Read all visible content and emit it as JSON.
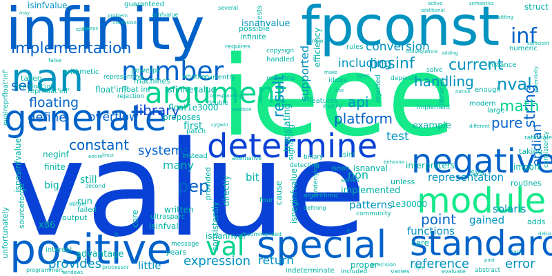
{
  "words": [
    {
      "text": "value"
    },
    {
      "text": "ieee"
    },
    {
      "text": "infinity"
    },
    {
      "text": "fpconst"
    },
    {
      "text": "positive"
    },
    {
      "text": "special"
    },
    {
      "text": "standard"
    },
    {
      "text": "generate"
    },
    {
      "text": "module"
    },
    {
      "text": "determine"
    },
    {
      "text": "argument"
    },
    {
      "text": "negative"
    },
    {
      "text": "nan"
    },
    {
      "text": "number"
    },
    {
      "text": "val"
    },
    {
      "text": "implementation"
    },
    {
      "text": "inf"
    },
    {
      "text": "current"
    },
    {
      "text": "posinf"
    },
    {
      "text": "supported"
    },
    {
      "text": "handling"
    },
    {
      "text": "nval"
    },
    {
      "text": "including"
    },
    {
      "text": "conversion"
    },
    {
      "text": "set"
    },
    {
      "text": "result"
    },
    {
      "text": "string"
    },
    {
      "text": "endian"
    },
    {
      "text": "floating"
    },
    {
      "text": "library"
    },
    {
      "text": "api"
    },
    {
      "text": "math"
    },
    {
      "text": "define"
    },
    {
      "text": "overflow"
    },
    {
      "text": "platform"
    },
    {
      "text": "pure"
    },
    {
      "text": "constant"
    },
    {
      "text": "systems"
    },
    {
      "text": "test"
    },
    {
      "text": "pep"
    },
    {
      "text": "point"
    },
    {
      "text": "gained"
    },
    {
      "text": "representation"
    },
    {
      "text": "patterns"
    },
    {
      "text": "functions"
    },
    {
      "text": "solaris"
    },
    {
      "text": "provides"
    },
    {
      "text": "expression"
    },
    {
      "text": "return"
    },
    {
      "text": "reference"
    },
    {
      "text": "error"
    },
    {
      "text": "little"
    },
    {
      "text": "isnanvalue"
    },
    {
      "text": "isinfvalue"
    },
    {
      "text": "float'inf'"
    },
    {
      "text": "float inf"
    },
    {
      "text": "isfinitevalue"
    },
    {
      "text": "powerpc"
    },
    {
      "text": "float1e3000"
    },
    {
      "text": "reprfloat'inf'"
    },
    {
      "text": "isposinfvalue"
    },
    {
      "text": "isneginfvalue"
    },
    {
      "text": "isnannval"
    },
    {
      "text": "isinfval"
    },
    {
      "text": "neginf"
    },
    {
      "text": "finite"
    },
    {
      "text": "big"
    },
    {
      "text": "x86"
    },
    {
      "text": "run"
    },
    {
      "text": "sourceforge"
    },
    {
      "text": "first"
    },
    {
      "text": "proposes"
    },
    {
      "text": "written"
    },
    {
      "text": "many"
    },
    {
      "text": "still"
    },
    {
      "text": "interpreters"
    },
    {
      "text": "implemented"
    },
    {
      "text": "example"
    },
    {
      "text": "non"
    },
    {
      "text": "bit"
    },
    {
      "text": "directly"
    },
    {
      "text": "provided"
    },
    {
      "text": "cause"
    },
    {
      "text": "isnanval"
    },
    {
      "text": "isnan"
    },
    {
      "text": "isinf"
    },
    {
      "text": "every"
    },
    {
      "text": "rules"
    },
    {
      "text": "guaranteed"
    },
    {
      "text": "arithmetic"
    },
    {
      "text": "machines"
    },
    {
      "text": "taken"
    },
    {
      "text": "core"
    },
    {
      "text": "ultrasparc"
    },
    {
      "text": "advantage"
    },
    {
      "text": "years"
    },
    {
      "text": "1e30000"
    },
    {
      "text": "care"
    },
    {
      "text": "adds"
    },
    {
      "text": "proper"
    },
    {
      "text": "translating"
    },
    {
      "text": "signalling"
    },
    {
      "text": "consistently"
    },
    {
      "text": "tests"
    },
    {
      "text": "possible"
    },
    {
      "text": "infinite"
    },
    {
      "text": "efficiency"
    },
    {
      "text": "struct"
    },
    {
      "text": "handled"
    },
    {
      "text": "copysign"
    },
    {
      "text": "roundtrip"
    },
    {
      "text": "requires"
    },
    {
      "text": "sys"
    },
    {
      "text": "import"
    },
    {
      "text": "taking"
    },
    {
      "text": "routines"
    },
    {
      "text": "instance"
    },
    {
      "text": "numeric"
    },
    {
      "text": "enough"
    },
    {
      "text": "large"
    },
    {
      "text": "modern"
    },
    {
      "text": "libraries"
    },
    {
      "text": "features"
    },
    {
      "text": "ideas"
    },
    {
      "text": "rejected"
    },
    {
      "text": "depends"
    },
    {
      "text": "implement"
    },
    {
      "text": "solve"
    },
    {
      "text": "rationale"
    },
    {
      "text": "consistency"
    },
    {
      "text": "unless"
    },
    {
      "text": "series"
    },
    {
      "text": "four"
    },
    {
      "text": "algorithmic"
    },
    {
      "text": "community"
    },
    {
      "text": "underlying"
    },
    {
      "text": "detecting"
    },
    {
      "text": "binary"
    },
    {
      "text": "alternative"
    },
    {
      "text": "defining"
    },
    {
      "text": "recommended"
    },
    {
      "text": "indeterminate"
    },
    {
      "text": "included"
    },
    {
      "text": "precision"
    },
    {
      "text": "abstract"
    },
    {
      "text": "varies"
    },
    {
      "text": "evaluate"
    },
    {
      "text": "processor"
    },
    {
      "text": "output"
    },
    {
      "text": "failed"
    },
    {
      "text": "second"
    },
    {
      "text": "obtain"
    },
    {
      "text": "interest"
    },
    {
      "text": "unfortunately"
    },
    {
      "text": "programmers"
    },
    {
      "text": "message"
    },
    {
      "text": "instead"
    },
    {
      "text": "patch"
    },
    {
      "text": "currently"
    },
    {
      "text": "double"
    },
    {
      "text": "whether"
    },
    {
      "text": "representing"
    },
    {
      "text": "rejection"
    },
    {
      "text": "corresponding"
    },
    {
      "text": "addition"
    },
    {
      "text": "cygwin"
    },
    {
      "text": "linux"
    },
    {
      "text": "entire"
    },
    {
      "text": "behavior"
    },
    {
      "text": "different"
    },
    {
      "text": "past"
    },
    {
      "text": "debian"
    },
    {
      "text": "hack"
    },
    {
      "text": "potentially"
    },
    {
      "text": "semantics"
    },
    {
      "text": "sitting"
    },
    {
      "text": "active"
    },
    {
      "text": "additional"
    },
    {
      "text": "several"
    },
    {
      "text": "sufficient"
    },
    {
      "text": "open"
    },
    {
      "text": "consequence"
    },
    {
      "text": "notice"
    },
    {
      "text": "adding"
    },
    {
      "text": "sparc"
    },
    {
      "text": "always"
    },
    {
      "text": "problem"
    },
    {
      "text": "confusion"
    },
    {
      "text": "false"
    },
    {
      "text": "may"
    },
    {
      "text": "now"
    },
    {
      "text": "isinfvalue"
    },
    {
      "text": "evalreprfloat'inf'"
    },
    {
      "text": "reprfloat'inf'"
    },
    {
      "text": "windows"
    },
    {
      "text": "make"
    },
    {
      "text": "use"
    },
    {
      "text": "ugly"
    }
  ]
}
